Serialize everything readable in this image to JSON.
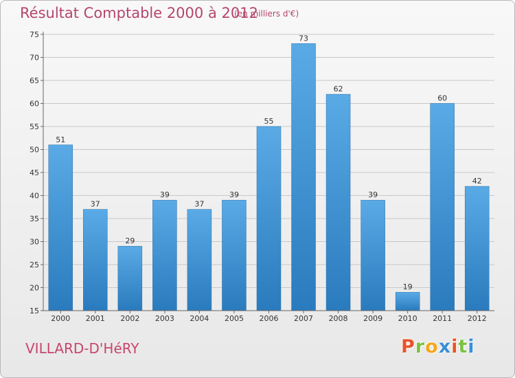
{
  "header": {
    "title": "Résultat Comptable 2000 à 2012",
    "subtitle": "(en milliers d'€)"
  },
  "footer": {
    "commune": "VILLARD-D'HéRY",
    "logo_letters": [
      "P",
      "r",
      "o",
      "x",
      "i",
      "t",
      "i"
    ],
    "logo_colors": [
      "#e8542a",
      "#7cc142",
      "#f4a81d",
      "#3a8fd6",
      "#e8542a",
      "#7cc142",
      "#3a8fd6"
    ]
  },
  "colors": {
    "bar_light": "#5aaae6",
    "bar_dark": "#2a7bbd",
    "grid": "#c8c8c8"
  },
  "chart_data": {
    "type": "bar",
    "title": "Résultat Comptable 2000 à 2012",
    "subtitle": "(en milliers d'€)",
    "categories": [
      "2000",
      "2001",
      "2002",
      "2003",
      "2004",
      "2005",
      "2006",
      "2007",
      "2008",
      "2009",
      "2010",
      "2011",
      "2012"
    ],
    "values": [
      51,
      37,
      29,
      39,
      37,
      39,
      55,
      73,
      62,
      39,
      19,
      60,
      42
    ],
    "yticks": [
      15,
      20,
      25,
      30,
      35,
      40,
      45,
      50,
      55,
      60,
      65,
      70,
      75
    ],
    "ylim": [
      15,
      75
    ],
    "grid": true
  }
}
